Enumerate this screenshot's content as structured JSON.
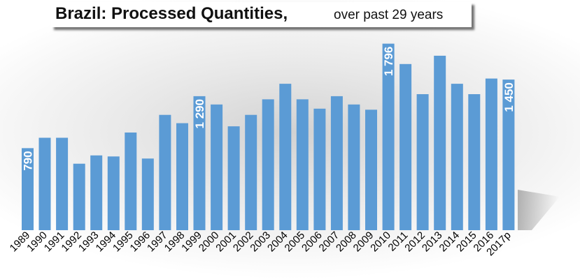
{
  "title": "Brazil: Processed Quantities,",
  "subtitle": "over past 29 years",
  "chart_data": {
    "type": "bar",
    "title": "Brazil: Processed Quantities,",
    "subtitle": "over past 29 years",
    "xlabel": "",
    "ylabel": "",
    "grid": false,
    "legend": "none",
    "bar_color": "#5b9bd5",
    "label_color": "#ffffff",
    "ylim": [
      0,
      1800
    ],
    "categories": [
      "1989",
      "1990",
      "1991",
      "1992",
      "1993",
      "1994",
      "1995",
      "1996",
      "1997",
      "1998",
      "1999",
      "2000",
      "2001",
      "2002",
      "2003",
      "2004",
      "2005",
      "2006",
      "2007",
      "2008",
      "2009",
      "2010",
      "2011",
      "2012",
      "2013",
      "2014",
      "2015",
      "2016",
      "2017p"
    ],
    "values": [
      790,
      890,
      890,
      640,
      720,
      710,
      940,
      690,
      1110,
      1030,
      1290,
      1210,
      1000,
      1110,
      1260,
      1410,
      1260,
      1170,
      1290,
      1210,
      1160,
      1796,
      1600,
      1310,
      1680,
      1410,
      1310,
      1460,
      1450
    ],
    "data_labels": [
      {
        "category": "1989",
        "text": "790"
      },
      {
        "category": "1999",
        "text": "1 290"
      },
      {
        "category": "2010",
        "text": "1 796"
      },
      {
        "category": "2017p",
        "text": "1 450"
      }
    ]
  }
}
